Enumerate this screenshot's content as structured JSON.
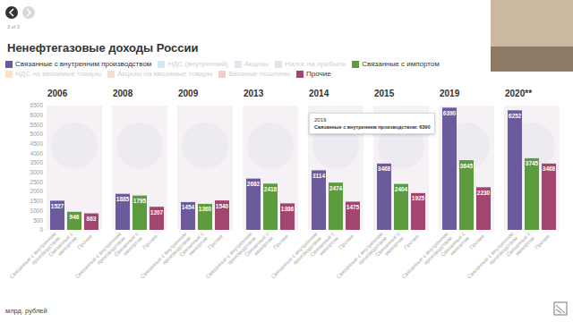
{
  "page": {
    "nav": "3 of 3"
  },
  "chart_data": {
    "type": "bar",
    "title": "Ненефтегазовые доходы России",
    "ylabel": "млрд. рублей",
    "categories": [
      "2006",
      "2008",
      "2009",
      "2013",
      "2014",
      "2015",
      "2019",
      "2020**"
    ],
    "series": [
      {
        "name": "Связанные с внутренним производством",
        "color": "#6b5a9c",
        "values": [
          1527,
          1885,
          1454,
          2682,
          3114,
          3468,
          6390,
          6252
        ]
      },
      {
        "name": "НДС (внутренний)",
        "color": "#d3e8f1",
        "values": [
          null,
          null,
          null,
          null,
          null,
          null,
          null,
          null
        ]
      },
      {
        "name": "Акцизы",
        "color": "#e6e4ef",
        "values": [
          null,
          null,
          null,
          null,
          null,
          null,
          null,
          null
        ]
      },
      {
        "name": "Налог на прибыль",
        "color": "#e3e3e3",
        "values": [
          null,
          null,
          null,
          null,
          null,
          null,
          null,
          null
        ]
      },
      {
        "name": "Связанные с импортом",
        "color": "#5c9c3f",
        "values": [
          946,
          1795,
          1360,
          2418,
          2474,
          2404,
          3645,
          3745
        ]
      },
      {
        "name": "НДС на ввозимые товары",
        "color": "#fbe3c6",
        "values": [
          null,
          null,
          null,
          null,
          null,
          null,
          null,
          null
        ]
      },
      {
        "name": "Акцизы на ввозимые товары",
        "color": "#f6dcd2",
        "values": [
          null,
          null,
          null,
          null,
          null,
          null,
          null,
          null
        ]
      },
      {
        "name": "Ввозные пошлины",
        "color": "#f4cccc",
        "values": [
          null,
          null,
          null,
          null,
          null,
          null,
          null,
          null
        ]
      },
      {
        "name": "Прочие",
        "color": "#a3466f",
        "values": [
          863,
          1207,
          1540,
          1386,
          1475,
          1925,
          2230,
          3468
        ]
      }
    ],
    "ylim": [
      0,
      6500
    ],
    "yticks": [
      0,
      500,
      1000,
      1500,
      2000,
      2500,
      3000,
      3500,
      4000,
      4500,
      5000,
      5500,
      6000,
      6500
    ],
    "grid": false,
    "legend": "top",
    "data_labels": true,
    "annotations": [
      {
        "text": "2019"
      },
      {
        "text": "Связанные с внутренним производством: 6390"
      }
    ]
  }
}
